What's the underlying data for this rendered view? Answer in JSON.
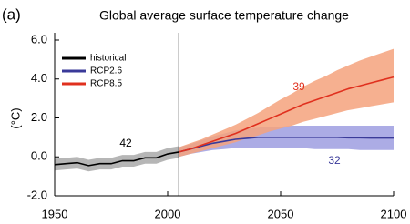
{
  "chart_data": {
    "type": "line",
    "panel_label": "(a)",
    "title": "Global average surface temperature change",
    "y_label": "(°C)",
    "xlim": [
      1950,
      2100
    ],
    "xticks": [
      1950,
      2000,
      2050,
      2100
    ],
    "ylim": [
      -2.0,
      6.0
    ],
    "yticks": [
      {
        "value": -2.0,
        "label": "-2.0"
      },
      {
        "value": 0,
        "label": "0.0"
      },
      {
        "value": 2.0,
        "label": "2.0"
      },
      {
        "value": 4.0,
        "label": "4.0"
      },
      {
        "value": 6.0,
        "label": "6.0"
      }
    ],
    "vline": 2005,
    "legend": "top-left",
    "series": [
      {
        "name": "historical",
        "color": "#000000",
        "band_color": "#a9a9a9",
        "model_count": "42",
        "x": [
          1950,
          1955,
          1960,
          1965,
          1970,
          1975,
          1980,
          1985,
          1990,
          1995,
          2000,
          2005
        ],
        "values": [
          -0.4,
          -0.35,
          -0.3,
          -0.45,
          -0.35,
          -0.35,
          -0.2,
          -0.2,
          -0.05,
          -0.05,
          0.15,
          0.25
        ],
        "lower": [
          -0.7,
          -0.65,
          -0.6,
          -0.75,
          -0.65,
          -0.65,
          -0.5,
          -0.5,
          -0.35,
          -0.35,
          -0.15,
          -0.05
        ],
        "upper": [
          -0.1,
          -0.05,
          0.0,
          -0.15,
          -0.05,
          -0.05,
          0.1,
          0.1,
          0.25,
          0.25,
          0.45,
          0.55
        ]
      },
      {
        "name": "RCP2.6",
        "color": "#3a3a99",
        "band_color": "#9d9de0",
        "model_count": "32",
        "x": [
          2005,
          2010,
          2015,
          2020,
          2025,
          2030,
          2035,
          2040,
          2045,
          2050,
          2055,
          2060,
          2065,
          2070,
          2075,
          2080,
          2085,
          2090,
          2095,
          2100
        ],
        "values": [
          0.25,
          0.4,
          0.55,
          0.7,
          0.8,
          0.9,
          0.95,
          1.0,
          1.0,
          1.0,
          1.0,
          1.0,
          1.0,
          1.0,
          1.0,
          0.98,
          0.98,
          0.97,
          0.97,
          0.97
        ],
        "lower": [
          0.0,
          0.15,
          0.25,
          0.35,
          0.4,
          0.45,
          0.45,
          0.45,
          0.45,
          0.45,
          0.45,
          0.45,
          0.4,
          0.4,
          0.4,
          0.4,
          0.35,
          0.35,
          0.35,
          0.35
        ],
        "upper": [
          0.5,
          0.65,
          0.85,
          1.05,
          1.2,
          1.35,
          1.45,
          1.5,
          1.55,
          1.55,
          1.6,
          1.6,
          1.6,
          1.6,
          1.6,
          1.6,
          1.6,
          1.6,
          1.6,
          1.6
        ]
      },
      {
        "name": "RCP8.5",
        "color": "#e0301e",
        "band_color": "#f5a27c",
        "model_count": "39",
        "x": [
          2005,
          2010,
          2015,
          2020,
          2025,
          2030,
          2035,
          2040,
          2045,
          2050,
          2055,
          2060,
          2065,
          2070,
          2075,
          2080,
          2085,
          2090,
          2095,
          2100
        ],
        "values": [
          0.25,
          0.4,
          0.6,
          0.8,
          1.0,
          1.2,
          1.45,
          1.7,
          1.95,
          2.2,
          2.45,
          2.7,
          2.9,
          3.1,
          3.3,
          3.5,
          3.65,
          3.8,
          3.95,
          4.1
        ],
        "lower": [
          0.0,
          0.15,
          0.3,
          0.45,
          0.6,
          0.75,
          0.95,
          1.1,
          1.3,
          1.45,
          1.6,
          1.8,
          1.95,
          2.1,
          2.25,
          2.4,
          2.5,
          2.6,
          2.7,
          2.8
        ],
        "upper": [
          0.5,
          0.7,
          0.9,
          1.15,
          1.4,
          1.65,
          1.95,
          2.25,
          2.6,
          2.95,
          3.25,
          3.6,
          3.9,
          4.15,
          4.45,
          4.7,
          4.95,
          5.15,
          5.35,
          5.55
        ]
      }
    ]
  }
}
